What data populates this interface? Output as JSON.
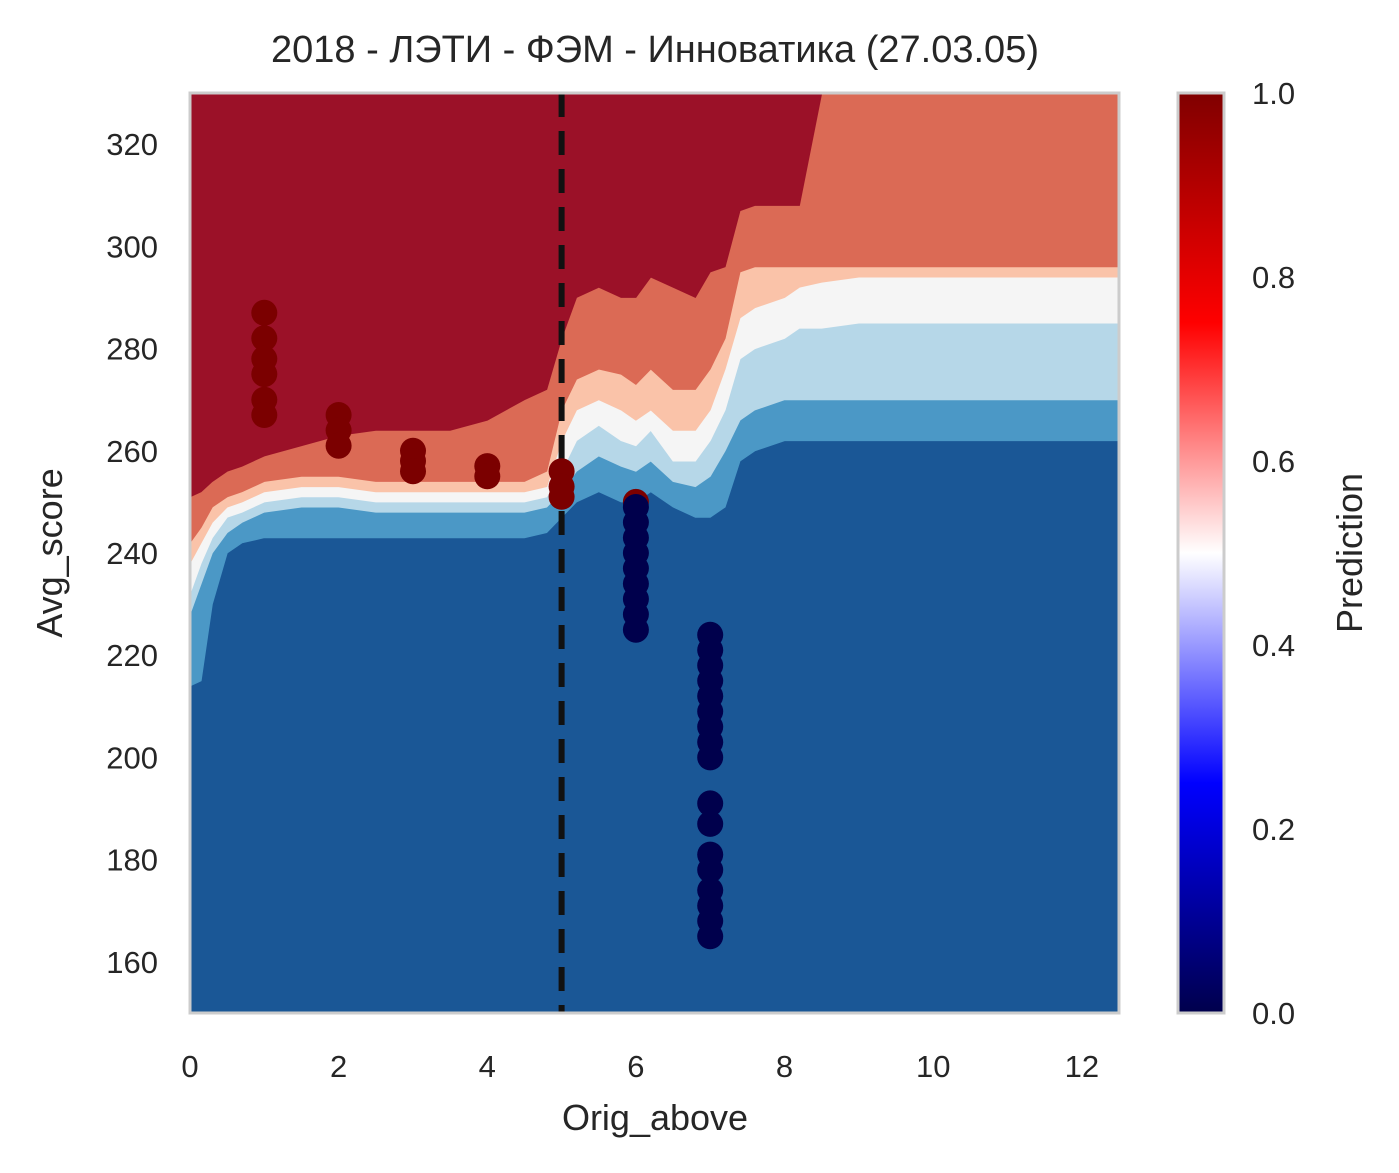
{
  "chart_data": {
    "type": "contour+scatter",
    "title": "2018 - ЛЭТИ - ФЭМ - Инноватика (27.03.05)",
    "xlabel": "Orig_above",
    "ylabel": "Avg_score",
    "xlim": [
      0,
      12.5
    ],
    "ylim": [
      150,
      330
    ],
    "x_ticks": [
      "0",
      "2",
      "4",
      "6",
      "8",
      "10",
      "12"
    ],
    "y_ticks": [
      "160",
      "180",
      "200",
      "220",
      "240",
      "260",
      "280",
      "300",
      "320"
    ],
    "threshold_line": {
      "x": 5,
      "style": "dashed",
      "color": "#111111"
    },
    "colorbar": {
      "label": "Prediction",
      "ticks": [
        "0.0",
        "0.2",
        "0.4",
        "0.6",
        "0.8",
        "1.0"
      ],
      "range": [
        0,
        1
      ],
      "colormap": "seismic"
    },
    "contour_bands": [
      {
        "level": "0.0-0.2",
        "color": "#1a5796"
      },
      {
        "level": "0.2-0.35",
        "color": "#4b98c6"
      },
      {
        "level": "0.35-0.45",
        "color": "#b6d7e8"
      },
      {
        "level": "0.45-0.55",
        "color": "#f5f5f5"
      },
      {
        "level": "0.55-0.65",
        "color": "#fac3a9"
      },
      {
        "level": "0.65-0.8",
        "color": "#db6a55"
      },
      {
        "level": "0.8-1.0",
        "color": "#9b1128"
      }
    ],
    "series": [
      {
        "label": "1",
        "color": "#7b0000",
        "points": [
          [
            1,
            287
          ],
          [
            1,
            282
          ],
          [
            1,
            278
          ],
          [
            1,
            275
          ],
          [
            1,
            270
          ],
          [
            1,
            267
          ],
          [
            2,
            267
          ],
          [
            2,
            264
          ],
          [
            2,
            261
          ],
          [
            3,
            260
          ],
          [
            3,
            258
          ],
          [
            3,
            256
          ],
          [
            4,
            257
          ],
          [
            4,
            255
          ],
          [
            5,
            256
          ],
          [
            5,
            253
          ],
          [
            5,
            251
          ],
          [
            6,
            250
          ]
        ]
      },
      {
        "label": "0",
        "color": "#00004c",
        "points": [
          [
            6,
            249
          ],
          [
            6,
            246
          ],
          [
            6,
            243
          ],
          [
            6,
            240
          ],
          [
            6,
            237
          ],
          [
            6,
            234
          ],
          [
            6,
            231
          ],
          [
            6,
            228
          ],
          [
            6,
            225
          ],
          [
            7,
            224
          ],
          [
            7,
            221
          ],
          [
            7,
            218
          ],
          [
            7,
            215
          ],
          [
            7,
            212
          ],
          [
            7,
            209
          ],
          [
            7,
            206
          ],
          [
            7,
            203
          ],
          [
            7,
            200
          ],
          [
            7,
            191
          ],
          [
            7,
            187
          ],
          [
            7,
            181
          ],
          [
            7,
            178
          ],
          [
            7,
            174
          ],
          [
            7,
            171
          ],
          [
            7,
            168
          ],
          [
            7,
            165
          ]
        ]
      }
    ]
  }
}
